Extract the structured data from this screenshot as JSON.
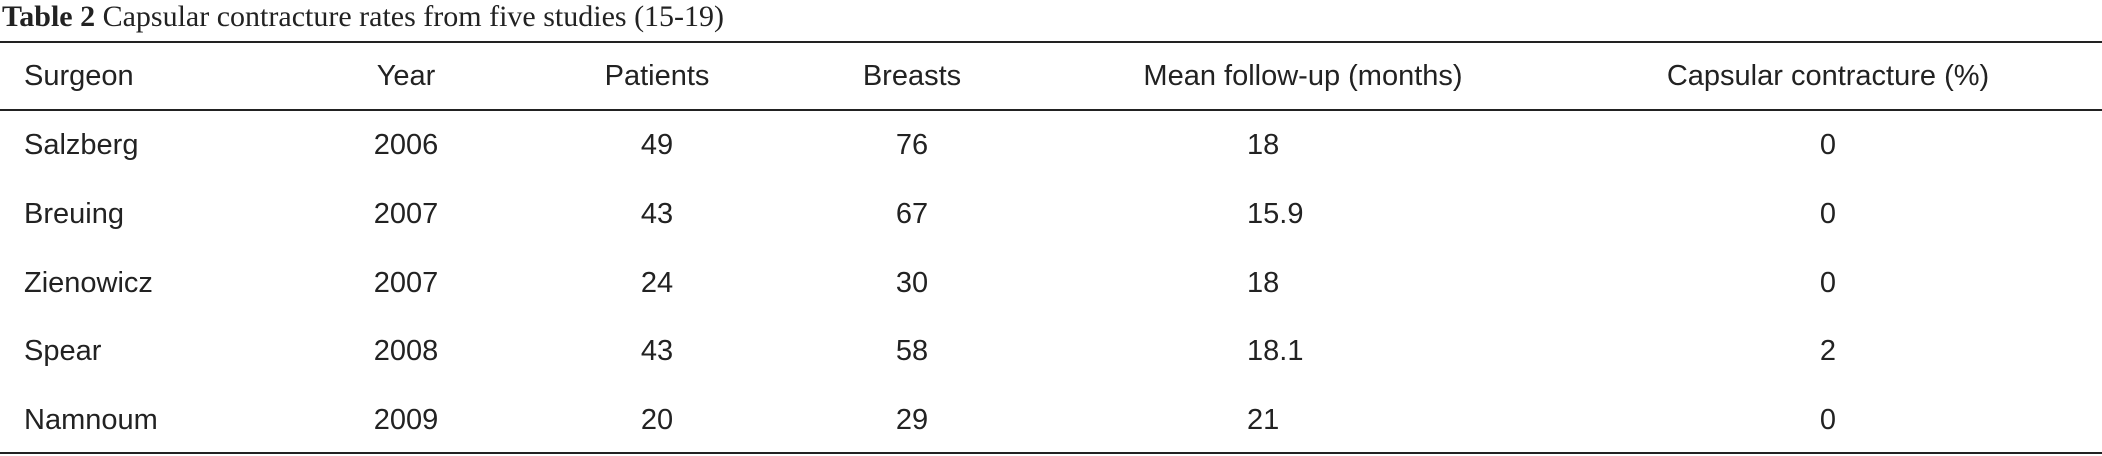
{
  "caption": {
    "label": "Table 2",
    "text": "Capsular contracture rates from five studies (15-19)"
  },
  "table": {
    "columns": [
      "Surgeon",
      "Year",
      "Patients",
      "Breasts",
      "Mean follow-up (months)",
      "Capsular contracture (%)"
    ],
    "rows": [
      [
        "Salzberg",
        2006,
        49,
        76,
        18,
        0
      ],
      [
        "Breuing",
        2007,
        43,
        67,
        15.9,
        0
      ],
      [
        "Zienowicz",
        2007,
        24,
        30,
        18,
        0
      ],
      [
        "Spear",
        2008,
        43,
        58,
        18.1,
        2
      ],
      [
        "Namnoum",
        2009,
        20,
        29,
        21,
        0
      ]
    ]
  }
}
